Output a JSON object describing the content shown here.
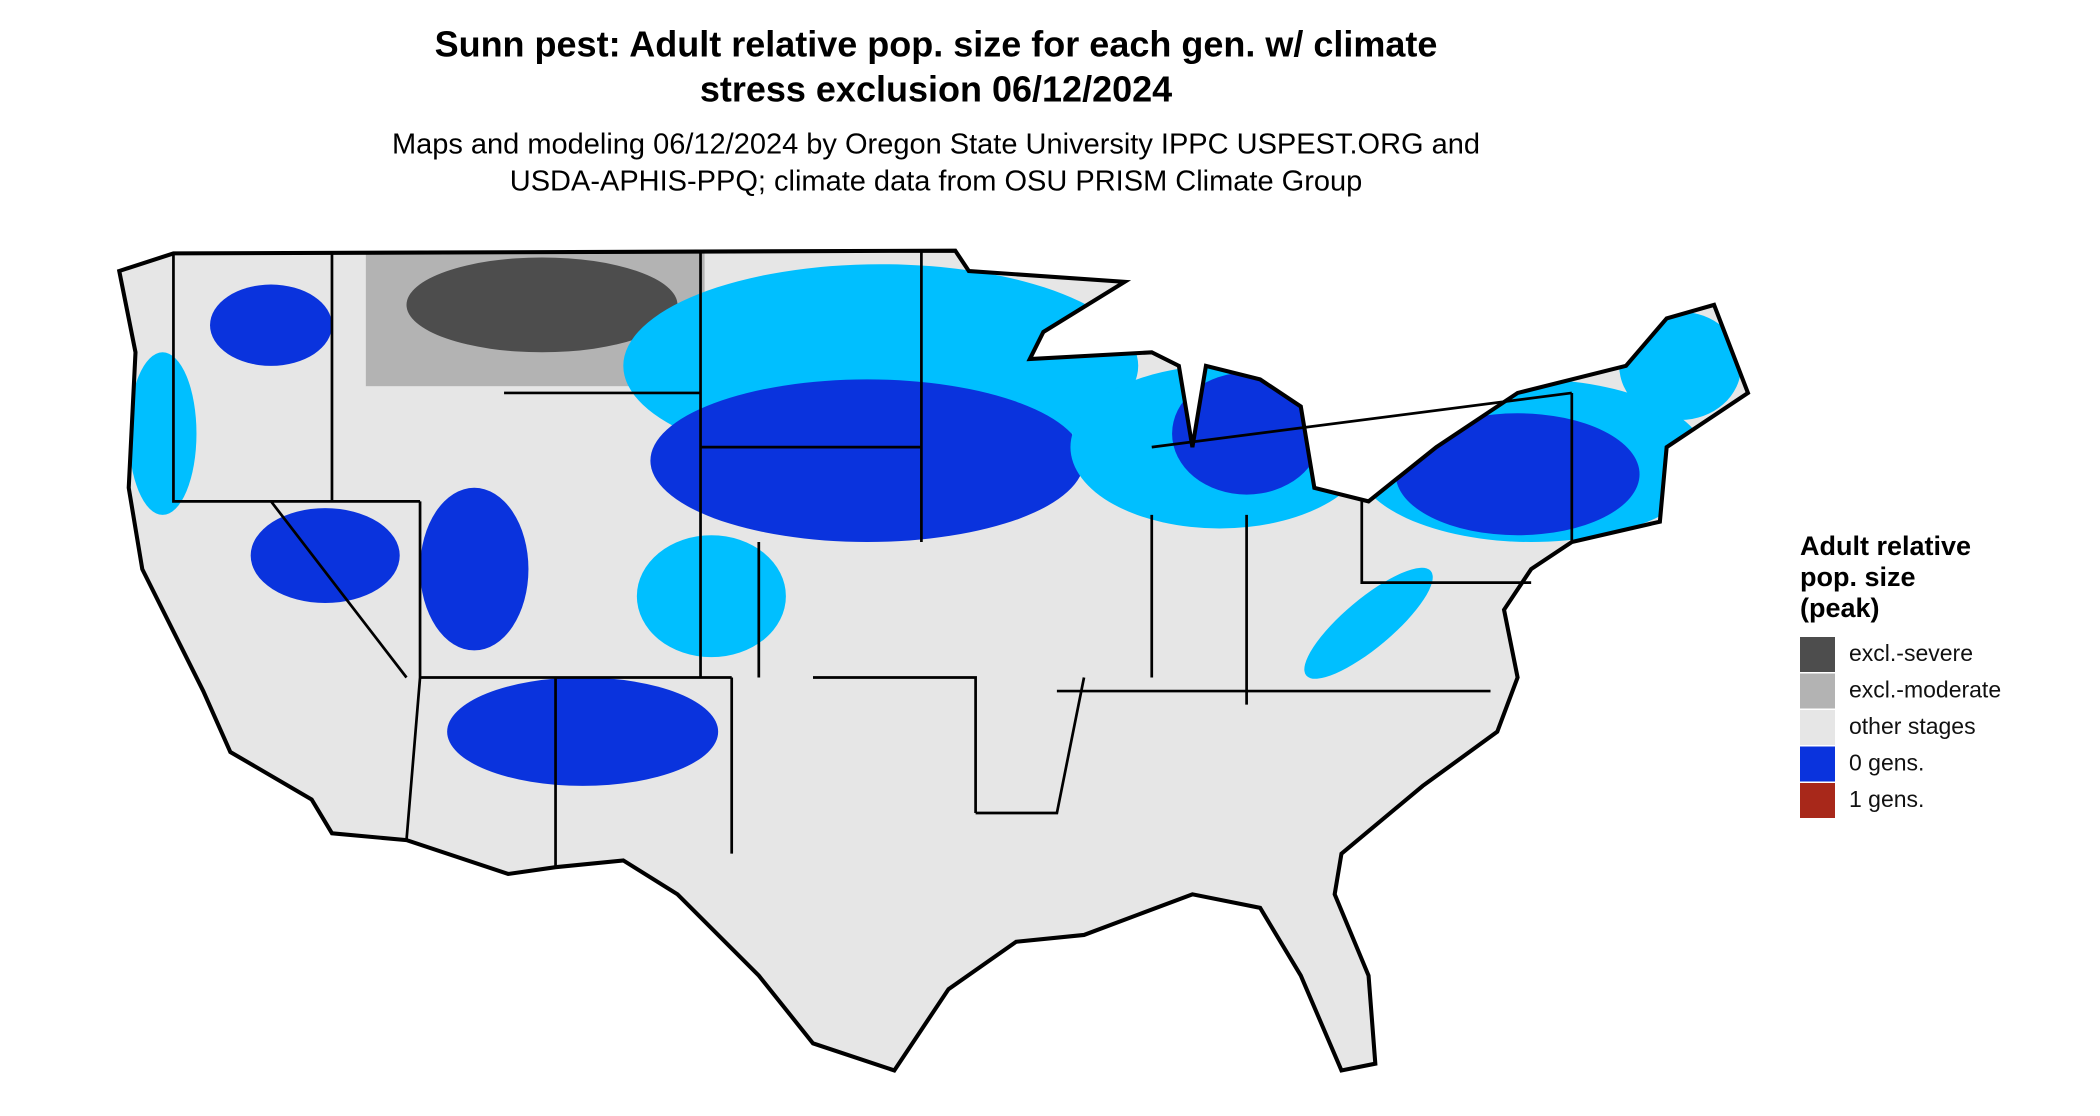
{
  "title": [
    "Sunn pest: Adult relative pop. size for each gen. w/ climate",
    "stress exclusion 06/12/2024"
  ],
  "subtitle": [
    "Maps and modeling 06/12/2024 by Oregon State University IPPC USPEST.ORG and",
    "USDA-APHIS-PPQ; climate data from OSU PRISM Climate Group"
  ],
  "legend": {
    "title": [
      "Adult relative",
      "pop. size",
      "(peak)"
    ],
    "items": [
      {
        "label": "excl.-severe",
        "color": "#4d4d4d"
      },
      {
        "label": "excl.-moderate",
        "color": "#b3b3b3"
      },
      {
        "label": "other stages",
        "color": "#e6e6e6"
      },
      {
        "label": "0 gens.",
        "color": "#0a33dd"
      },
      {
        "label": "1 gens.",
        "color": "#a8281a"
      }
    ]
  }
}
